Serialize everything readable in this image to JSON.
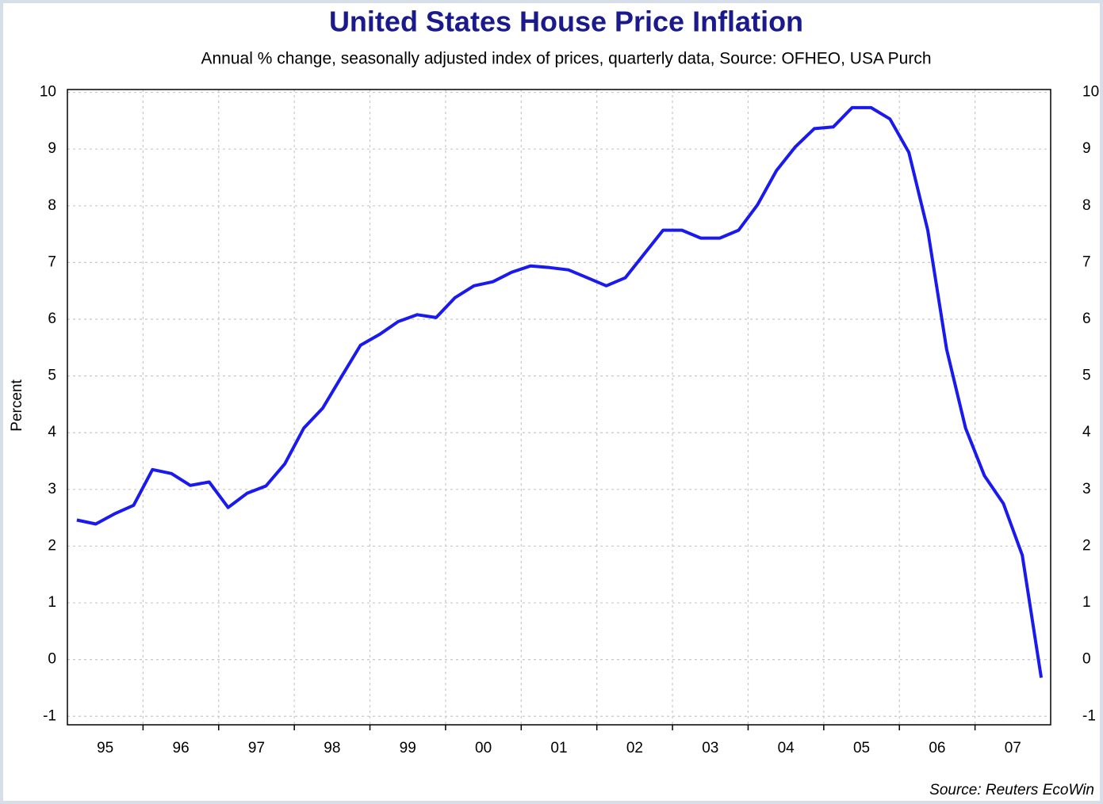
{
  "chart_data": {
    "type": "line",
    "title": "United States House Price Inflation",
    "subtitle": "Annual % change, seasonally adjusted index of prices, quarterly data, Source: OFHEO, USA Purch",
    "ylabel": "Percent",
    "source": "Source: Reuters EcoWin",
    "color": "#1a1aee",
    "grid": true,
    "xlim": [
      1995,
      2008
    ],
    "ylim": [
      -1.15,
      10.05
    ],
    "yticks": [
      -1,
      0,
      1,
      2,
      3,
      4,
      5,
      6,
      7,
      8,
      9,
      10
    ],
    "xticks": [
      {
        "value": 1995.5,
        "label": "95"
      },
      {
        "value": 1996.5,
        "label": "96"
      },
      {
        "value": 1997.5,
        "label": "97"
      },
      {
        "value": 1998.5,
        "label": "98"
      },
      {
        "value": 1999.5,
        "label": "99"
      },
      {
        "value": 2000.5,
        "label": "00"
      },
      {
        "value": 2001.5,
        "label": "01"
      },
      {
        "value": 2002.5,
        "label": "02"
      },
      {
        "value": 2003.5,
        "label": "03"
      },
      {
        "value": 2004.5,
        "label": "04"
      },
      {
        "value": 2005.5,
        "label": "05"
      },
      {
        "value": 2006.5,
        "label": "06"
      },
      {
        "value": 2007.5,
        "label": "07"
      }
    ],
    "x": [
      1995.125,
      1995.375,
      1995.625,
      1995.875,
      1996.125,
      1996.375,
      1996.625,
      1996.875,
      1997.125,
      1997.375,
      1997.625,
      1997.875,
      1998.125,
      1998.375,
      1998.625,
      1998.875,
      1999.125,
      1999.375,
      1999.625,
      1999.875,
      2000.125,
      2000.375,
      2000.625,
      2000.875,
      2001.125,
      2001.375,
      2001.625,
      2001.875,
      2002.125,
      2002.375,
      2002.625,
      2002.875,
      2003.125,
      2003.375,
      2003.625,
      2003.875,
      2004.125,
      2004.375,
      2004.625,
      2004.875,
      2005.125,
      2005.375,
      2005.625,
      2005.875,
      2006.125,
      2006.375,
      2006.625,
      2006.875,
      2007.125,
      2007.375,
      2007.625,
      2007.875
    ],
    "values": [
      2.46,
      2.39,
      2.57,
      2.72,
      3.35,
      3.28,
      3.07,
      3.13,
      2.68,
      2.93,
      3.06,
      3.45,
      4.08,
      4.43,
      4.99,
      5.54,
      5.73,
      5.96,
      6.08,
      6.03,
      6.38,
      6.59,
      6.66,
      6.83,
      6.94,
      6.91,
      6.87,
      6.73,
      6.59,
      6.73,
      7.15,
      7.57,
      7.57,
      7.43,
      7.43,
      7.57,
      8.02,
      8.62,
      9.04,
      9.36,
      9.39,
      9.73,
      9.73,
      9.53,
      8.94,
      7.57,
      5.47,
      4.08,
      3.24,
      2.75,
      1.84,
      -0.32
    ]
  }
}
